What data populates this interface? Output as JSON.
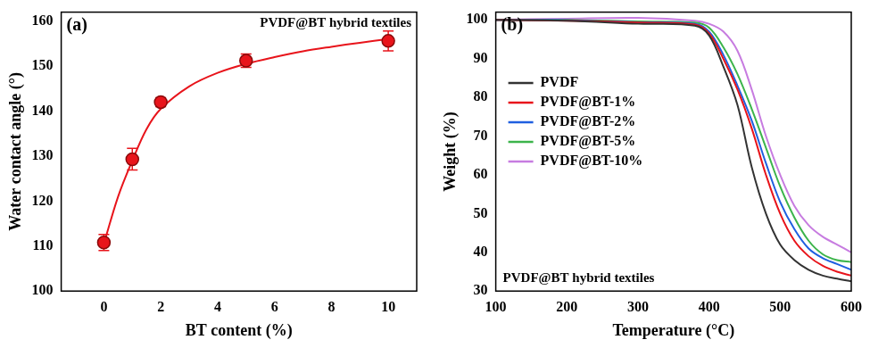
{
  "chart_data": [
    {
      "type": "scatter",
      "panel": "(a)",
      "title": "PVDF@BT hybrid textiles",
      "x_label": "BT content (%)",
      "y_label": "Water contact angle (°)",
      "xlim": [
        -1.5,
        11
      ],
      "xticks": [
        0,
        2,
        4,
        6,
        8,
        10
      ],
      "ylim": [
        100,
        162
      ],
      "yticks": [
        100,
        110,
        120,
        130,
        140,
        150,
        160
      ],
      "grid": false,
      "series": [
        {
          "type": "scatter",
          "marker": "circle",
          "color": "#e8141b",
          "x": [
            0,
            1,
            2,
            5,
            10
          ],
          "values": [
            110.8,
            129.3,
            142.0,
            151.2,
            155.6
          ],
          "errors": [
            1.8,
            2.4,
            1.0,
            1.5,
            2.2
          ]
        },
        {
          "type": "line",
          "line_style": "solid",
          "color": "#e8141b",
          "x": [
            0,
            0.5,
            1,
            1.5,
            2,
            3,
            4,
            5,
            6,
            7,
            8,
            9,
            10
          ],
          "values": [
            110.5,
            121,
            129,
            136,
            140.5,
            145.5,
            148.5,
            150.5,
            152,
            153.3,
            154.3,
            155.2,
            156
          ]
        }
      ]
    },
    {
      "type": "line",
      "panel": "(b)",
      "title": "PVDF@BT hybrid textiles",
      "x_label": "Temperature (°C)",
      "y_label": "Weight (%)",
      "xlim": [
        100,
        600
      ],
      "xticks": [
        100,
        200,
        300,
        400,
        500,
        600
      ],
      "ylim": [
        30,
        102
      ],
      "yticks": [
        30,
        40,
        50,
        60,
        70,
        80,
        90,
        100
      ],
      "grid": false,
      "legend": "left",
      "x": [
        100,
        200,
        300,
        380,
        400,
        420,
        440,
        460,
        480,
        500,
        520,
        540,
        560,
        580,
        600
      ],
      "series": [
        {
          "name": "PVDF",
          "color": "#333333",
          "values": [
            100,
            99.8,
            99,
            98.5,
            96,
            88,
            78,
            62,
            50,
            42,
            38,
            35.5,
            34,
            33.2,
            32.5
          ]
        },
        {
          "name": "PVDF@BT-1%",
          "color": "#e8141b",
          "values": [
            100,
            99.8,
            99.3,
            98.8,
            96.5,
            90,
            82,
            72,
            60,
            50,
            43,
            39,
            36.5,
            35,
            34
          ]
        },
        {
          "name": "PVDF@BT-2%",
          "color": "#1f5fe0",
          "values": [
            100,
            99.9,
            99.4,
            99,
            97,
            91,
            83,
            74,
            63,
            53,
            46,
            41,
            38.5,
            37,
            35.5
          ]
        },
        {
          "name": "PVDF@BT-5%",
          "color": "#3cb44b",
          "values": [
            100,
            100,
            99.6,
            99.3,
            98,
            93,
            86,
            77,
            67,
            57,
            49,
            43,
            39.5,
            38,
            37.5
          ]
        },
        {
          "name": "PVDF@BT-10%",
          "color": "#c77ce0",
          "values": [
            100,
            100.3,
            100.5,
            99.8,
            99,
            97,
            92,
            82,
            70,
            60,
            52,
            47,
            44,
            42,
            40
          ]
        }
      ]
    }
  ]
}
